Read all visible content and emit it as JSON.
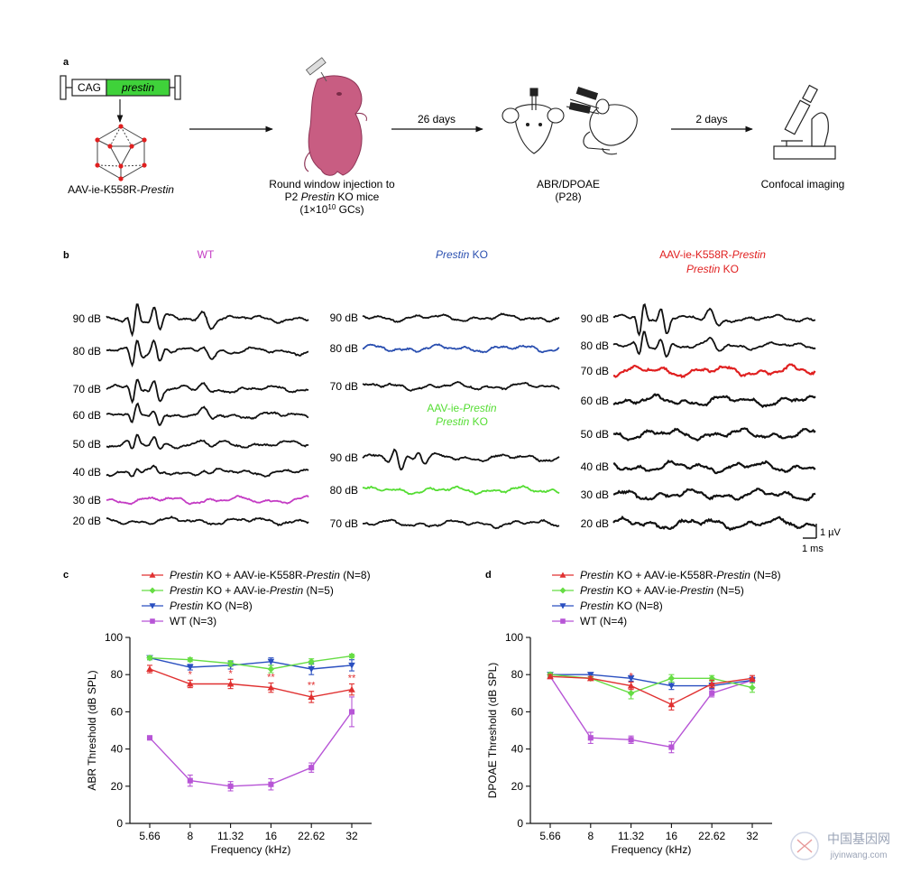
{
  "panels": {
    "a": {
      "label": "a",
      "construct": {
        "promoter": "CAG",
        "gene": "prestin"
      },
      "vector": {
        "prefix": "AAV-ie-K558R-",
        "gene": "Prestin"
      },
      "injection": {
        "line1": "Round window injection to",
        "line2_pre": "P2 ",
        "line2_gene": "Prestin",
        "line2_post": " KO mice",
        "line3_pre": "(1×10",
        "line3_exp": "10",
        "line3_post": " GCs)"
      },
      "arrow1": "26 days",
      "test": {
        "line1": "ABR/DPOAE",
        "line2": "(P28)"
      },
      "arrow2": "2 days",
      "imaging": "Confocal imaging"
    },
    "b": {
      "label": "b",
      "titles": {
        "wt": "WT",
        "ko_gene": "Prestin",
        "ko_rest": " KO",
        "k558r_l1_pre": "AAV-ie-K558R-",
        "k558r_l1_gene": "Prestin",
        "k558r_l2_gene": "Prestin",
        "k558r_l2_rest": " KO",
        "aav_l1_pre": "AAV-ie-",
        "aav_l1_gene": "Prestin",
        "aav_l2_gene": "Prestin",
        "aav_l2_rest": " KO"
      },
      "scale": {
        "amp": "1 µV",
        "time": "1 ms"
      },
      "groups": [
        {
          "id": "wt",
          "colour": "#c43cc4",
          "threshold": "30 dB",
          "levels": [
            "90 dB",
            "80 dB",
            "70 dB",
            "60 dB",
            "50 dB",
            "40 dB",
            "30 dB",
            "20 dB"
          ]
        },
        {
          "id": "ko",
          "colour": "#2a4fb0",
          "threshold": "80 dB",
          "levels": [
            "90 dB",
            "80 dB",
            "70 dB"
          ]
        },
        {
          "id": "aav",
          "colour": "#55dd33",
          "threshold": "80 dB",
          "levels": [
            "90 dB",
            "80 dB",
            "70 dB"
          ]
        },
        {
          "id": "k558r",
          "colour": "#e02020",
          "threshold": "70 dB",
          "levels": [
            "90 dB",
            "80 dB",
            "70 dB",
            "60 dB",
            "50 dB",
            "40 dB",
            "30 dB",
            "20 dB"
          ]
        }
      ]
    },
    "c": {
      "label": "c",
      "legend": [
        {
          "gene": "Prestin",
          "pre": " KO + AAV-ie-K558R-",
          "gene2": "Prestin",
          "post": " (N=8)",
          "colour": "#e03030",
          "marker": "triangle-up"
        },
        {
          "gene": "Prestin",
          "pre": " KO + AAV-ie-",
          "gene2": "Prestin",
          "post": " (N=5)",
          "colour": "#66dd44",
          "marker": "diamond"
        },
        {
          "gene": "Prestin",
          "pre": " KO (N=8)",
          "gene2": "",
          "post": "",
          "colour": "#2a4fc0",
          "marker": "triangle-down"
        },
        {
          "gene": "",
          "pre": "WT (N=3)",
          "gene2": "",
          "post": "",
          "colour": "#b755d6",
          "marker": "square"
        }
      ]
    },
    "d": {
      "label": "d",
      "legend": [
        {
          "gene": "Prestin",
          "pre": " KO + AAV-ie-K558R-",
          "gene2": "Prestin",
          "post": " (N=8)",
          "colour": "#e03030",
          "marker": "triangle-up"
        },
        {
          "gene": "Prestin",
          "pre": " KO + AAV-ie-",
          "gene2": "Prestin",
          "post": " (N=5)",
          "colour": "#66dd44",
          "marker": "diamond"
        },
        {
          "gene": "Prestin",
          "pre": " KO (N=8)",
          "gene2": "",
          "post": "",
          "colour": "#2a4fc0",
          "marker": "triangle-down"
        },
        {
          "gene": "",
          "pre": "WT (N=4)",
          "gene2": "",
          "post": "",
          "colour": "#b755d6",
          "marker": "square"
        }
      ]
    }
  },
  "watermark": {
    "cn": "中国基因网",
    "en": "jiyinwang.com"
  },
  "chart_data": [
    {
      "type": "line",
      "panel": "c",
      "ylabel": "ABR Threshold (dB SPL)",
      "xlabel": "Frequency (kHz)",
      "categories": [
        "5.66",
        "8",
        "11.32",
        "16",
        "22.62",
        "32"
      ],
      "ylim": [
        0,
        100
      ],
      "yticks": [
        "0",
        "20",
        "40",
        "60",
        "80",
        "100"
      ],
      "series": [
        {
          "name": "K558R",
          "values": [
            83,
            75,
            75,
            73,
            68,
            72
          ],
          "err": [
            2,
            2,
            2.5,
            2.5,
            3,
            3
          ],
          "stars": [
            "",
            "*",
            "*",
            "**",
            "**",
            "**"
          ]
        },
        {
          "name": "AAV",
          "values": [
            89,
            88,
            86,
            83,
            87,
            90
          ],
          "err": [
            1,
            1,
            1.5,
            2,
            1.5,
            1
          ],
          "stars": []
        },
        {
          "name": "KO",
          "values": [
            89,
            84,
            85,
            87,
            83,
            85
          ],
          "err": [
            1,
            1.5,
            2,
            2,
            3,
            3
          ],
          "stars": []
        },
        {
          "name": "WT",
          "values": [
            46,
            23,
            20,
            21,
            30,
            60
          ],
          "err": [
            1,
            3,
            2.5,
            3,
            2.5,
            8
          ],
          "stars": []
        }
      ]
    },
    {
      "type": "line",
      "panel": "d",
      "ylabel": "DPOAE Threshold (dB SPL)",
      "xlabel": "Frequency (kHz)",
      "categories": [
        "5.66",
        "8",
        "11.32",
        "16",
        "22.62",
        "32"
      ],
      "ylim": [
        0,
        100
      ],
      "yticks": [
        "0",
        "20",
        "40",
        "60",
        "80",
        "100"
      ],
      "series": [
        {
          "name": "K558R",
          "values": [
            79,
            78,
            74,
            64,
            75,
            78
          ],
          "err": [
            1,
            1,
            2,
            3,
            2,
            1.5
          ],
          "stars": [
            "",
            "",
            "*",
            "",
            "",
            ""
          ]
        },
        {
          "name": "AAV",
          "values": [
            80,
            78,
            70,
            78,
            78,
            73
          ],
          "err": [
            1,
            1,
            3,
            2,
            1.5,
            2.5
          ],
          "stars": []
        },
        {
          "name": "KO",
          "values": [
            80,
            80,
            78,
            74,
            74,
            77
          ],
          "err": [
            0.5,
            1,
            1.5,
            2,
            1.5,
            1.5
          ],
          "stars": []
        },
        {
          "name": "WT",
          "values": [
            79,
            46,
            45,
            41,
            70,
            77
          ],
          "err": [
            1,
            3,
            2,
            3,
            2,
            1.5
          ],
          "stars": []
        }
      ]
    }
  ]
}
